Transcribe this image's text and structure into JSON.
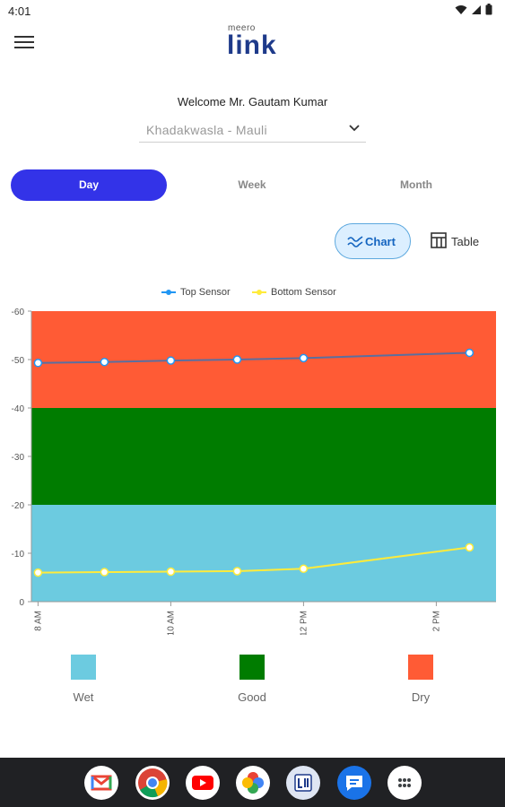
{
  "status_bar": {
    "time": "4:01"
  },
  "header": {
    "logo_small": "meero",
    "logo_big": "link"
  },
  "welcome_text": "Welcome Mr. Gautam Kumar",
  "location_select": {
    "value": "Khadakwasla  - Mauli"
  },
  "tabs": [
    {
      "label": "Day",
      "active": true
    },
    {
      "label": "Week",
      "active": false
    },
    {
      "label": "Month",
      "active": false
    }
  ],
  "view_toggle": {
    "chart_label": "Chart",
    "table_label": "Table",
    "active": "chart"
  },
  "chart_data": {
    "type": "line",
    "x": [
      "8 AM",
      "9 AM",
      "10 AM",
      "11 AM",
      "12 PM",
      "2:30 PM"
    ],
    "x_ticks": [
      "8 AM",
      "10 AM",
      "12 PM",
      "2 PM"
    ],
    "x_hours": [
      8,
      9,
      10,
      11,
      12,
      14.5
    ],
    "x_tick_hours": [
      8,
      10,
      12,
      14
    ],
    "xlim": [
      7.9,
      14.9
    ],
    "y_ticks": [
      "0",
      "-10",
      "-20",
      "-30",
      "-40",
      "-50",
      "-60"
    ],
    "ylim": [
      0,
      -60
    ],
    "series": [
      {
        "name": "Top Sensor",
        "color": "#2196f3",
        "values": [
          -49.3,
          -49.5,
          -49.8,
          -50.0,
          -50.3,
          -51.4
        ]
      },
      {
        "name": "Bottom Sensor",
        "color": "#ffeb3b",
        "values": [
          -6.0,
          -6.1,
          -6.2,
          -6.3,
          -6.8,
          -11.2
        ]
      }
    ],
    "zones": [
      {
        "label": "Wet",
        "from": 0,
        "to": -20,
        "color": "#6ccbe0"
      },
      {
        "label": "Good",
        "from": -20,
        "to": -40,
        "color": "#007c00"
      },
      {
        "label": "Dry",
        "from": -40,
        "to": -60,
        "color": "#ff5b35"
      }
    ],
    "grid": false,
    "legend_position": "top-center"
  },
  "dock_apps": [
    {
      "name": "Gmail"
    },
    {
      "name": "Chrome"
    },
    {
      "name": "YouTube"
    },
    {
      "name": "Photos"
    },
    {
      "name": "Meero Link"
    },
    {
      "name": "Messages"
    },
    {
      "name": "App Drawer"
    }
  ]
}
